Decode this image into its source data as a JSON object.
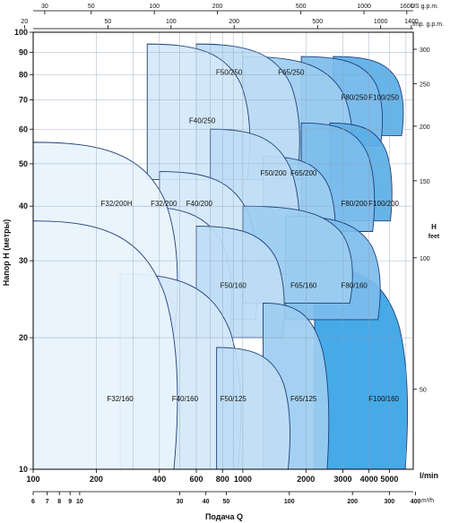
{
  "chart_data": {
    "type": "area",
    "title": "",
    "xscale": "log",
    "yscale": "log",
    "xlabel": "l/min",
    "xlabel_m3h": "m³/h",
    "bottom_title": "Подача Q",
    "ylabel": "Напор H (метры)",
    "ylabel_right": "H\nfeet",
    "top_unit_us": "US g.p.m.",
    "top_unit_imp": "Imp. g.p.m.",
    "xlim_lmin": [
      100,
      6500
    ],
    "ylim_m": [
      10,
      100
    ],
    "ticks_lmin": [
      "100",
      "200",
      "400",
      "600",
      "800",
      "1000",
      "2000",
      "3000",
      "4000",
      "5000"
    ],
    "ticks_m3h": [
      "6",
      "7",
      "8",
      "9",
      "10",
      "30",
      "40",
      "50",
      "100",
      "200",
      "300",
      "400"
    ],
    "ticks_us_gpm": [
      "30",
      "50",
      "100",
      "200",
      "500",
      "1000",
      "1600"
    ],
    "ticks_imp_gpm": [
      "20",
      "50",
      "100",
      "200",
      "500",
      "1000",
      "1400"
    ],
    "ticks_h_m": [
      "10",
      "20",
      "30",
      "40",
      "50",
      "60",
      "70",
      "80",
      "90",
      "100"
    ],
    "ticks_h_feet": [
      "50",
      "100",
      "150",
      "200",
      "250",
      "300"
    ],
    "grid": true,
    "regions": [
      {
        "name": "F100/250",
        "color": "#5aaee6",
        "flow_lmin": [
          2700,
          5900
        ],
        "head_m": [
          58,
          88
        ],
        "label_pos": [
          4700,
          70
        ]
      },
      {
        "name": "F80/250",
        "color": "#7cbdeb",
        "flow_lmin": [
          1900,
          4700
        ],
        "head_m": [
          55,
          88
        ],
        "label_pos": [
          3400,
          70
        ]
      },
      {
        "name": "F65/250",
        "color": "#9ccdf0",
        "flow_lmin": [
          1000,
          3400
        ],
        "head_m": [
          46,
          88
        ],
        "label_pos": [
          1700,
          80
        ]
      },
      {
        "name": "F50/250",
        "color": "#bddcf4",
        "flow_lmin": [
          600,
          1900
        ],
        "head_m": [
          46,
          94
        ],
        "label_pos": [
          860,
          80
        ]
      },
      {
        "name": "F40/250",
        "color": "#d4e8f9",
        "flow_lmin": [
          350,
          1100
        ],
        "head_m": [
          46,
          94
        ],
        "label_pos": [
          640,
          62
        ]
      },
      {
        "name": "F100/200",
        "color": "#5aaee6",
        "flow_lmin": [
          2600,
          5200
        ],
        "head_m": [
          37,
          62
        ],
        "label_pos": [
          4700,
          40
        ]
      },
      {
        "name": "F80/200",
        "color": "#7cbdeb",
        "flow_lmin": [
          1900,
          4300
        ],
        "head_m": [
          35,
          62
        ],
        "label_pos": [
          3400,
          40
        ]
      },
      {
        "name": "F65/200",
        "color": "#9ccdf0",
        "flow_lmin": [
          1250,
          2800
        ],
        "head_m": [
          30,
          52
        ],
        "label_pos": [
          1950,
          47
        ]
      },
      {
        "name": "F50/200",
        "color": "#bddcf4",
        "flow_lmin": [
          700,
          1900
        ],
        "head_m": [
          28,
          60
        ],
        "label_pos": [
          1400,
          47
        ]
      },
      {
        "name": "F40/200",
        "color": "#d4e8f9",
        "flow_lmin": [
          400,
          1200
        ],
        "head_m": [
          22,
          48
        ],
        "label_pos": [
          620,
          40
        ]
      },
      {
        "name": "F32/200",
        "color": "#e0eefb",
        "flow_lmin": [
          300,
          900
        ],
        "head_m": [
          20,
          40
        ],
        "label_pos": [
          420,
          40
        ]
      },
      {
        "name": "F32/200H",
        "color": "#e8f3fc",
        "flow_lmin": [
          100,
          500
        ],
        "head_m": [
          20,
          56
        ],
        "label_pos": [
          250,
          40
        ]
      },
      {
        "name": "F100/160",
        "color": "#36a3e6",
        "flow_lmin": [
          2200,
          6200
        ],
        "head_m": [
          10,
          29
        ],
        "label_pos": [
          4700,
          14.3
        ]
      },
      {
        "name": "F80/160",
        "color": "#7cbdeb",
        "flow_lmin": [
          1600,
          4600
        ],
        "head_m": [
          22,
          38
        ],
        "label_pos": [
          3400,
          26
        ]
      },
      {
        "name": "F65/160",
        "color": "#9ccdf0",
        "flow_lmin": [
          1000,
          3400
        ],
        "head_m": [
          24,
          40
        ],
        "label_pos": [
          1950,
          26
        ]
      },
      {
        "name": "F50/160",
        "color": "#bddcf4",
        "flow_lmin": [
          600,
          1600
        ],
        "head_m": [
          20,
          36
        ],
        "label_pos": [
          900,
          26
        ]
      },
      {
        "name": "F40/160",
        "color": "#d4e8f9",
        "flow_lmin": [
          260,
          1000
        ],
        "head_m": [
          10,
          28
        ],
        "label_pos": [
          530,
          14.3
        ]
      },
      {
        "name": "F32/160",
        "color": "#e8f3fc",
        "flow_lmin": [
          100,
          500
        ],
        "head_m": [
          10,
          37
        ],
        "label_pos": [
          260,
          14.3
        ]
      },
      {
        "name": "F65/125",
        "color": "#9ccdf0",
        "flow_lmin": [
          1250,
          2600
        ],
        "head_m": [
          10,
          24
        ],
        "label_pos": [
          1950,
          14.3
        ]
      },
      {
        "name": "F50/125",
        "color": "#bddcf4",
        "flow_lmin": [
          750,
          1700
        ],
        "head_m": [
          10,
          19
        ],
        "label_pos": [
          900,
          14.3
        ]
      }
    ]
  }
}
